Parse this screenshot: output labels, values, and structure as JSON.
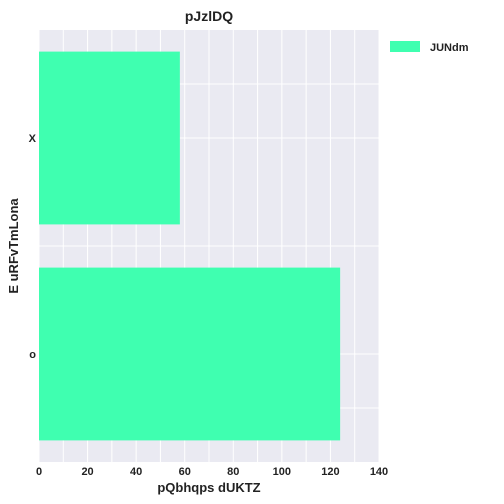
{
  "chart_data": {
    "type": "bar",
    "orientation": "horizontal",
    "title": "pJzlDQ",
    "xlabel": "pQbhqps  dUKTZ",
    "ylabel": "E uRFvTmLona",
    "categories": [
      "X",
      "o"
    ],
    "series": [
      {
        "name": "JUNdm",
        "values": [
          58,
          124
        ],
        "color": "#3fffb0"
      }
    ],
    "xlim": [
      0,
      140
    ],
    "xticks": [
      0,
      20,
      40,
      60,
      80,
      100,
      120,
      140
    ],
    "grid": true,
    "legend_position": "outside-top-right",
    "colors": {
      "plot_background": "#eaeaf2",
      "grid": "#ffffff"
    }
  }
}
